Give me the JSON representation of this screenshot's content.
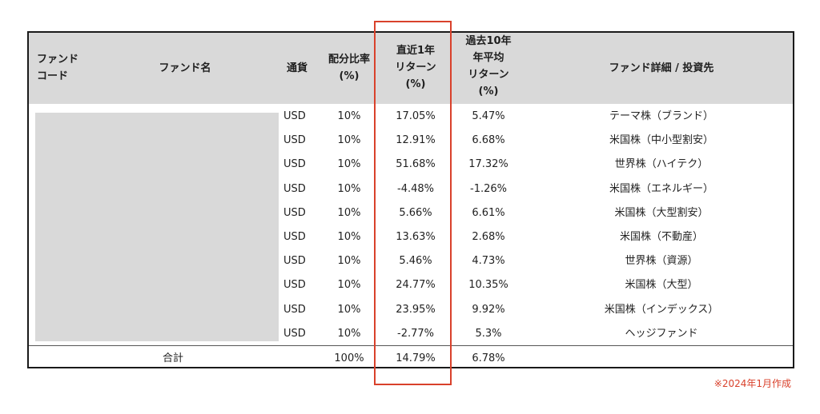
{
  "headers": {
    "fund_code": [
      "ファンド",
      "コード"
    ],
    "fund_name": "ファンド名",
    "currency": "通貨",
    "allocation": [
      "配分比率",
      "(%)"
    ],
    "return_1y": [
      "直近1年",
      "リターン",
      "(%)"
    ],
    "return_10y": [
      "過去10年",
      "年平均",
      "リターン",
      "(%)"
    ],
    "details": "ファンド詳細 / 投資先"
  },
  "rows": [
    {
      "currency": "USD",
      "allocation": "10%",
      "return_1y": "17.05%",
      "return_10y": "5.47%",
      "details": "テーマ株（ブランド）"
    },
    {
      "currency": "USD",
      "allocation": "10%",
      "return_1y": "12.91%",
      "return_10y": "6.68%",
      "details": "米国株（中小型割安）"
    },
    {
      "currency": "USD",
      "allocation": "10%",
      "return_1y": "51.68%",
      "return_10y": "17.32%",
      "details": "世界株（ハイテク）"
    },
    {
      "currency": "USD",
      "allocation": "10%",
      "return_1y": "-4.48%",
      "return_10y": "-1.26%",
      "details": "米国株（エネルギー）"
    },
    {
      "currency": "USD",
      "allocation": "10%",
      "return_1y": "5.66%",
      "return_10y": "6.61%",
      "details": "米国株（大型割安）"
    },
    {
      "currency": "USD",
      "allocation": "10%",
      "return_1y": "13.63%",
      "return_10y": "2.68%",
      "details": "米国株（不動産）"
    },
    {
      "currency": "USD",
      "allocation": "10%",
      "return_1y": "5.46%",
      "return_10y": "4.73%",
      "details": "世界株（資源）"
    },
    {
      "currency": "USD",
      "allocation": "10%",
      "return_1y": "24.77%",
      "return_10y": "10.35%",
      "details": "米国株（大型）"
    },
    {
      "currency": "USD",
      "allocation": "10%",
      "return_1y": "23.95%",
      "return_10y": "9.92%",
      "details": "米国株（インデックス）"
    },
    {
      "currency": "USD",
      "allocation": "10%",
      "return_1y": "-2.77%",
      "return_10y": "5.3%",
      "details": "ヘッジファンド"
    }
  ],
  "total": {
    "label": "合計",
    "allocation": "100%",
    "return_1y": "14.79%",
    "return_10y": "6.78%"
  },
  "footnote": "※2024年1月作成",
  "colors": {
    "highlight": "#d9412b",
    "header_bg": "#d9d9d9",
    "redacted_bg": "#d9d9d9"
  }
}
